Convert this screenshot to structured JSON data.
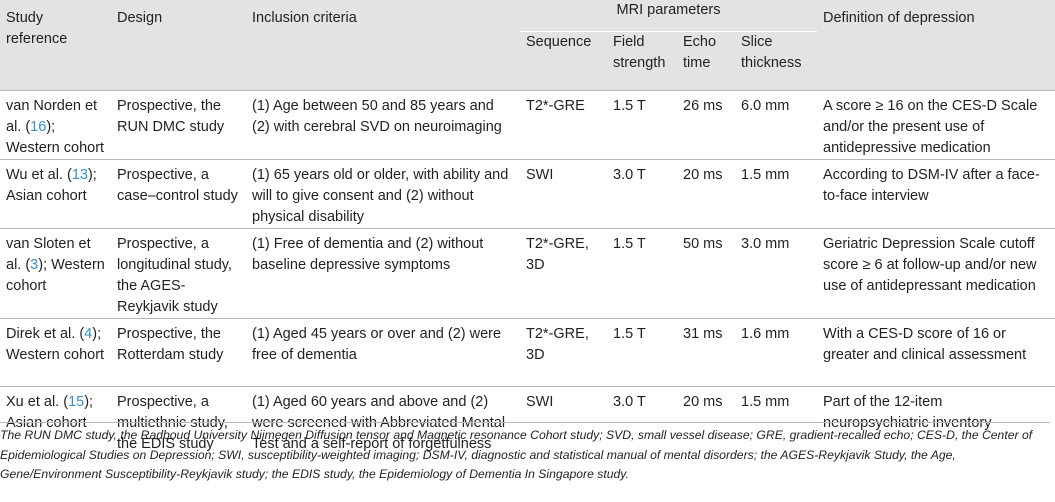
{
  "headers": {
    "study_reference": "Study reference",
    "design": "Design",
    "inclusion_criteria": "Inclusion criteria",
    "mri_parameters": "MRI parameters",
    "definition": "Definition of depression",
    "sequence": "Sequence",
    "field_strength": "Field strength",
    "echo_time": "Echo time",
    "slice_thickness": "Slice thickness"
  },
  "rows": [
    {
      "ref_pre": "van Norden et al. (",
      "ref_num": "16",
      "ref_post": "); Western cohort",
      "design": "Prospective, the RUN DMC study",
      "inclusion": "(1) Age between 50 and 85 years and (2) with cerebral SVD on neuroimaging",
      "sequence": "T2*-GRE",
      "field": "1.5 T",
      "echo": "26 ms",
      "slice": "6.0 mm",
      "definition": "A score ≥ 16 on the CES-D Scale and/or the present use of antidepressive medication"
    },
    {
      "ref_pre": "Wu et al. (",
      "ref_num": "13",
      "ref_post": "); Asian cohort",
      "design": "Prospective, a case–control study",
      "inclusion": "(1) 65 years old or older, with ability and will to give consent and (2) without physical disability",
      "sequence": "SWI",
      "field": "3.0 T",
      "echo": "20 ms",
      "slice": "1.5 mm",
      "definition": "According to DSM-IV after a face-to-face interview"
    },
    {
      "ref_pre": "van Sloten et al. (",
      "ref_num": "3",
      "ref_post": "); Western cohort",
      "design": "Prospective, a longitudinal study, the AGES-Reykjavik study",
      "inclusion": "(1) Free of dementia and (2) without baseline depressive symptoms",
      "sequence": "T2*-GRE, 3D",
      "field": "1.5 T",
      "echo": "50 ms",
      "slice": "3.0 mm",
      "definition": "Geriatric Depression Scale cutoff score ≥ 6 at follow-up and/or new use of antidepressant medication"
    },
    {
      "ref_pre": "Direk et al. (",
      "ref_num": "4",
      "ref_post": "); Western cohort",
      "design": "Prospective, the Rotterdam study",
      "inclusion": "(1) Aged 45 years or over and (2) were free of dementia",
      "sequence": "T2*-GRE, 3D",
      "field": "1.5 T",
      "echo": "31 ms",
      "slice": "1.6 mm",
      "definition": "With a CES-D score of 16 or greater and clinical assessment"
    },
    {
      "ref_pre": "Xu et al. (",
      "ref_num": "15",
      "ref_post": "); Asian cohort",
      "design": "Prospective, a multiethnic study, the EDIS study",
      "inclusion": "(1) Aged 60 years and above and (2) were screened with Abbreviated Mental Test and a self-report of forgetfulness",
      "sequence": "SWI",
      "field": "3.0 T",
      "echo": "20 ms",
      "slice": "1.5 mm",
      "definition": "Part of the 12-item neuropsychiatric inventory"
    }
  ],
  "footnote": "The RUN DMC study, the Radboud University Nijmegen Diffusion tensor and Magnetic resonance Cohort study; SVD, small vessel disease; GRE, gradient-recalled echo; CES-D, the Center of Epidemiological Studies on Depression; SWI, susceptibility-weighted imaging; DSM-IV, diagnostic and statistical manual of mental disorders; the AGES-Reykjavik Study, the Age, Gene/Environment Susceptibility-Reykjavik study; the EDIS study, the Epidemiology of Dementia In Singapore study.",
  "colors": {
    "header_bg": "#e2e3e4",
    "rule": "#b8b9bb",
    "link": "#3a8fc1"
  }
}
